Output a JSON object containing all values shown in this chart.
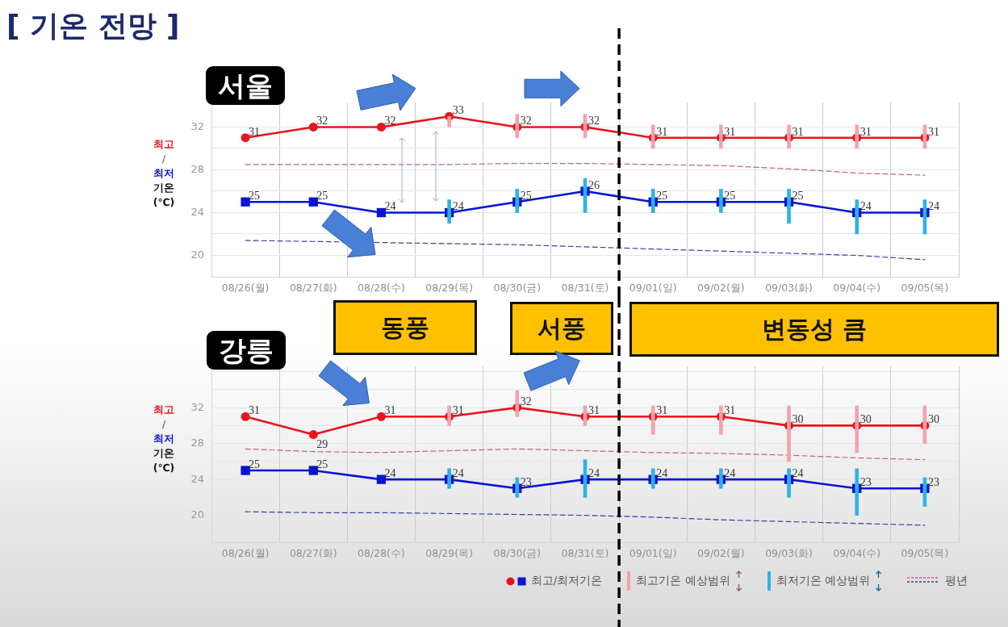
{
  "chart_data": [
    {
      "type": "line",
      "title": "[ 기온 전망 ]",
      "subtitle": "서울",
      "ylabel": "최고 / 최저 기온 (℃)",
      "categories": [
        "08/26(월)",
        "08/27(화)",
        "08/28(수)",
        "08/29(목)",
        "08/30(금)",
        "08/31(토)",
        "09/01(일)",
        "09/02(월)",
        "09/03(화)",
        "09/04(수)",
        "09/05(목)"
      ],
      "series": [
        {
          "color": "#e8141c",
          "marker": "circle",
          "values": [
            31,
            32,
            32,
            33,
            32,
            32,
            31,
            31,
            31,
            31,
            31
          ],
          "value_labels": [
            "31",
            "32",
            "32",
            "33",
            "32",
            "32",
            "31",
            "31",
            "31",
            "31",
            "31"
          ]
        },
        {
          "color": "#0a14d2",
          "marker": "square",
          "values": [
            25,
            25,
            24,
            24,
            25,
            26,
            25,
            25,
            25,
            24,
            24
          ],
          "value_labels": [
            "25",
            "25",
            "24",
            "24",
            "25",
            "26",
            "25",
            "25",
            "25",
            "24",
            "24"
          ]
        },
        {
          "type": "bar",
          "color": "#f4a3ab",
          "base": [
            null,
            null,
            null,
            32,
            31,
            31,
            30,
            30,
            30,
            30,
            30
          ],
          "values": [
            null,
            null,
            null,
            1,
            2.2,
            2.2,
            2.2,
            2.2,
            2.2,
            2.2,
            2.2
          ]
        },
        {
          "type": "bar",
          "color": "#2fb2e6",
          "base": [
            null,
            null,
            null,
            23,
            24,
            24,
            24,
            24,
            23,
            22,
            22
          ],
          "values": [
            null,
            null,
            null,
            2.2,
            2.2,
            3.2,
            2.2,
            2.2,
            3.2,
            3.2,
            3.2
          ]
        },
        {
          "color": "#c4607c",
          "marker": "none",
          "line_style": "dashed",
          "values": [
            28.5,
            28.5,
            28.5,
            28.5,
            28.6,
            28.6,
            28.5,
            28.4,
            28.1,
            27.7,
            27.5
          ]
        },
        {
          "color": "#3c40a0",
          "marker": "none",
          "line_style": "dashed",
          "values": [
            21.4,
            21.3,
            21.2,
            21.1,
            21.0,
            20.8,
            20.6,
            20.4,
            20.2,
            20.0,
            19.6
          ]
        }
      ],
      "ylim": [
        18,
        34.3
      ],
      "yticks": [
        20,
        {
          "value": 22,
          "label": null
        },
        24,
        {
          "value": 26,
          "label": null
        },
        28,
        {
          "value": 30,
          "label": null
        },
        32
      ],
      "grid": true,
      "ref_lines": [
        {
          "axis": "x",
          "value": "09/01(일)",
          "color": "#000000",
          "line_style": "dashed"
        }
      ]
    },
    {
      "type": "line",
      "subtitle": "강릉",
      "ylabel": "최고 / 최저 기온 (℃)",
      "categories": [
        "08/26(월)",
        "08/27(화)",
        "08/28(수)",
        "08/29(목)",
        "08/30(금)",
        "08/31(토)",
        "09/01(일)",
        "09/02(월)",
        "09/03(화)",
        "09/04(수)",
        "09/05(목)"
      ],
      "series": [
        {
          "color": "#e8141c",
          "marker": "circle",
          "values": [
            31,
            29,
            31,
            31,
            32,
            31,
            31,
            31,
            30,
            30,
            30
          ],
          "value_labels": [
            "31",
            "29",
            "31",
            "31",
            "32",
            "31",
            "31",
            "31",
            "30",
            "30",
            "30"
          ]
        },
        {
          "name": "최고/최저기온",
          "color": "#0a14d2",
          "marker": "square",
          "values": [
            25,
            25,
            24,
            24,
            23,
            24,
            24,
            24,
            24,
            23,
            23
          ],
          "value_labels": [
            "25",
            "25",
            "24",
            "24",
            "23",
            "24",
            "24",
            "24",
            "24",
            "23",
            "23"
          ]
        },
        {
          "name": "최고기온 예상범위",
          "type": "bar",
          "color": "#f4a3ab",
          "base": [
            null,
            null,
            null,
            30,
            31,
            30,
            29,
            29,
            26,
            27,
            28
          ],
          "values": [
            null,
            null,
            null,
            2.2,
            2.9,
            2.2,
            3.2,
            3.2,
            6.2,
            5.2,
            4.2
          ]
        },
        {
          "name": "최저기온 예상범위",
          "type": "bar",
          "color": "#2fb2e6",
          "base": [
            null,
            null,
            null,
            23,
            22,
            22,
            23,
            23,
            22,
            20,
            21
          ],
          "values": [
            null,
            null,
            null,
            2.2,
            2.2,
            4.2,
            2.2,
            2.2,
            3.2,
            5.2,
            3.2
          ]
        },
        {
          "name": "평년",
          "color": "#c4607c",
          "marker": "none",
          "line_style": "dashed",
          "values": [
            27.4,
            27.1,
            27.0,
            27.2,
            27.4,
            27.2,
            27.0,
            26.9,
            26.7,
            26.4,
            26.2
          ]
        },
        {
          "color": "#3c40a0",
          "marker": "none",
          "line_style": "dashed",
          "values": [
            20.4,
            20.3,
            20.3,
            20.2,
            20.1,
            20.0,
            19.8,
            19.5,
            19.3,
            19.1,
            18.9
          ]
        }
      ],
      "ylim": [
        17,
        36.6
      ],
      "yticks": [
        {
          "value": 18,
          "label": null
        },
        20,
        {
          "value": 22,
          "label": null
        },
        24,
        {
          "value": 26,
          "label": null
        },
        28,
        {
          "value": 30,
          "label": null
        },
        32,
        {
          "value": 34,
          "label": null
        },
        {
          "value": 36,
          "label": null
        }
      ],
      "grid": true,
      "legend": "bottom right",
      "ref_lines": [
        {
          "axis": "x",
          "value": "09/01(일)",
          "color": "#000000",
          "line_style": "dashed"
        }
      ],
      "annotations": [
        "동풍",
        "서풍",
        "변동성 큼"
      ]
    }
  ]
}
